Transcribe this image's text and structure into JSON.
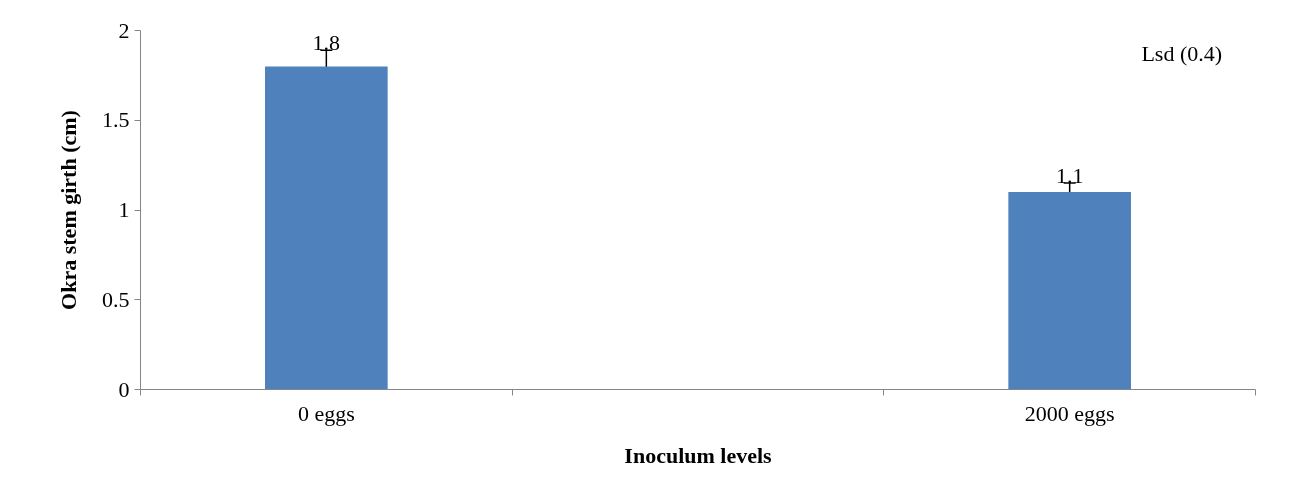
{
  "chart_data": {
    "type": "bar",
    "xlabel": "Inoculum levels",
    "ylabel": "Okra stem girth (cm)",
    "categories": [
      "0 eggs",
      null,
      "2000 eggs"
    ],
    "values": [
      1.8,
      null,
      1.1
    ],
    "errors": [
      0.09,
      null,
      0.05
    ],
    "color": "#4f81bd",
    "ylim": [
      0,
      2
    ],
    "yticks": [
      0,
      0.5,
      1,
      1.5,
      2
    ],
    "data_labels": true,
    "grid": false,
    "annotations": [
      "Lsd (0.4)"
    ]
  }
}
